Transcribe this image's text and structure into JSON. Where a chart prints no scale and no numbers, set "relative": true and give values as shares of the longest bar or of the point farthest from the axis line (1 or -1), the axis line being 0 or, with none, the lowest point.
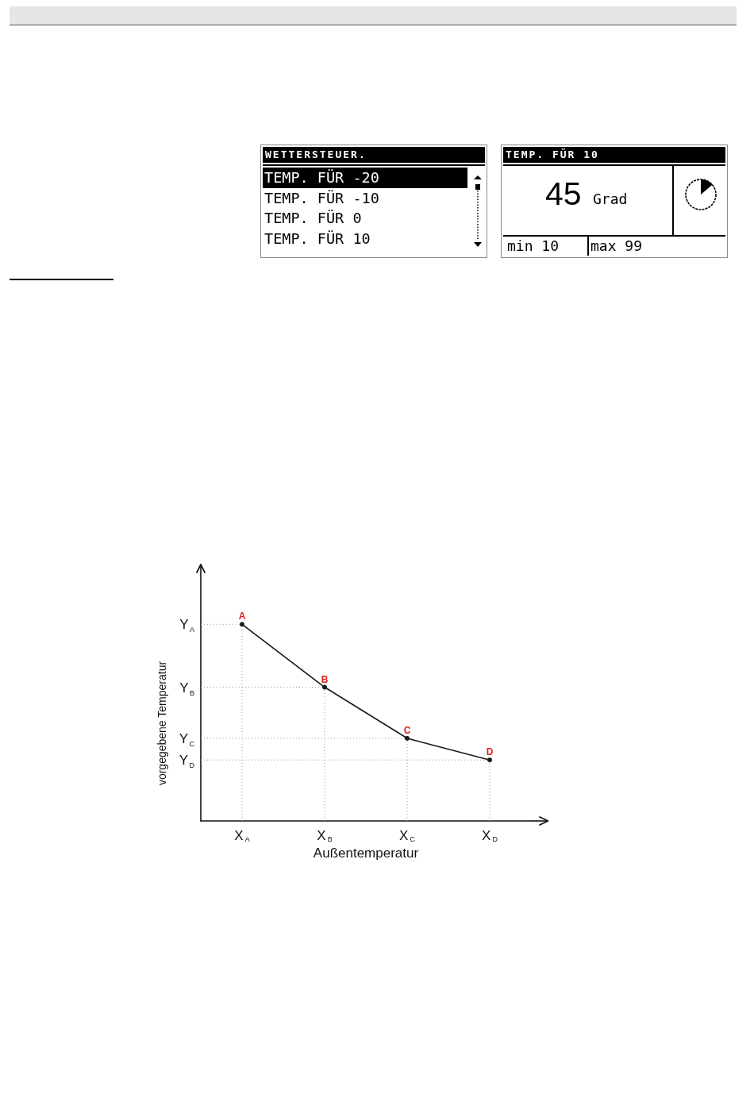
{
  "chart_data": [
    {
      "type": "other",
      "title": "WETTERSTEUER.",
      "annotations": [
        "TEMP. FÜR -20",
        "TEMP. FÜR -10",
        "TEMP. FÜR 0",
        "TEMP. FÜR 10"
      ]
    },
    {
      "type": "other",
      "title": "TEMP. FÜR 10",
      "annotations": [
        "45",
        "Grad",
        "min 10",
        "max 99"
      ]
    },
    {
      "type": "line",
      "categories": [
        "X$_{A}$",
        "X$_{B}$",
        "X$_{C}$",
        "X$_{D}$"
      ],
      "values": [
        1,
        0.68,
        0.42,
        0.31
      ],
      "relative": true,
      "color": "#1a1a1a",
      "marker": "circle",
      "grid": true,
      "xlabel": "Außentemperatur",
      "ylabel": "vorgegebene Temperatur",
      "annotations": [
        {
          "text": "A",
          "x": "X$_{A}$",
          "y": 1
        },
        {
          "text": "B",
          "x": "X$_{B}$",
          "y": 0.68
        },
        {
          "text": "C",
          "x": "X$_{C}$",
          "y": 0.42
        },
        {
          "text": "D",
          "x": "X$_{D}$",
          "y": 0.31
        },
        "Y$_{A}$",
        "Y$_{B}$",
        "Y$_{C}$",
        "Y$_{D}$"
      ]
    }
  ]
}
